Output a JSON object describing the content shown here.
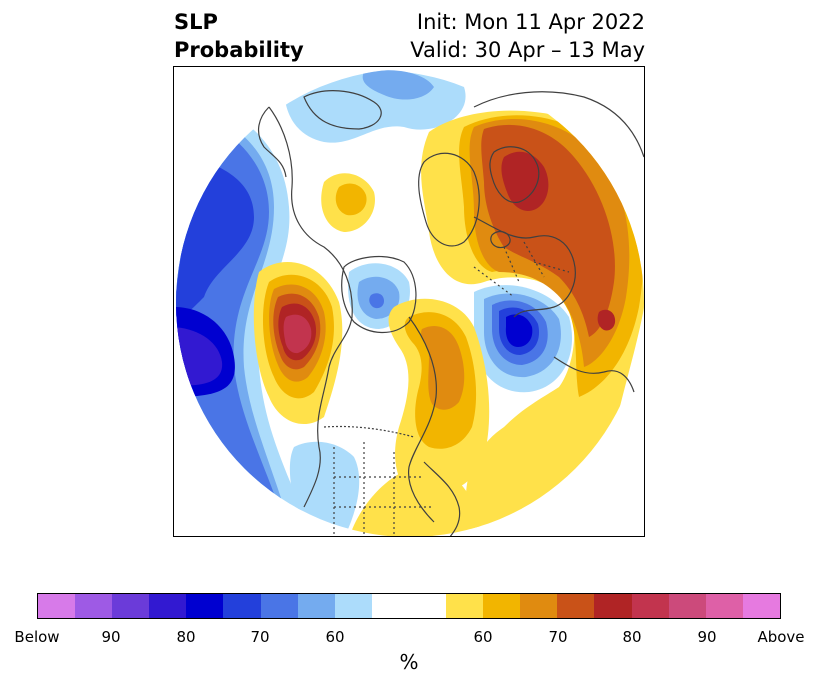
{
  "header": {
    "title_line1": "SLP",
    "title_line2": "Probability",
    "init": "Init: Mon 11 Apr 2022",
    "valid": "Valid: 30 Apr – 13 May"
  },
  "colorbar": {
    "unit": "%",
    "colors": [
      "#d77ae9",
      "#9e5ae5",
      "#6b3bd9",
      "#3219d1",
      "#0000d0",
      "#2340db",
      "#4a75e6",
      "#74abef",
      "#acdcfb",
      "#ffffff",
      "#ffffff",
      "#ffe14a",
      "#f2b500",
      "#e08b10",
      "#c95218",
      "#b02425",
      "#c2344e",
      "#cc4a7b",
      "#de60a7",
      "#e67ae0"
    ],
    "tick_labels": [
      "Below",
      "90",
      "80",
      "70",
      "60",
      "60",
      "70",
      "80",
      "90",
      "Above"
    ]
  },
  "map": {
    "projection": "north-polar-stereographic",
    "colors": {
      "below_60": "#acdcfb",
      "below_65": "#74abef",
      "below_70": "#4a75e6",
      "below_75": "#2340db",
      "below_80": "#0000d0",
      "below_85": "#3219d1",
      "above_60": "#ffe14a",
      "above_65": "#f2b500",
      "above_70": "#e08b10",
      "above_75": "#c95218",
      "above_80": "#b02425",
      "above_85": "#c2344e",
      "coast": "#404040",
      "border": "#404040"
    }
  }
}
